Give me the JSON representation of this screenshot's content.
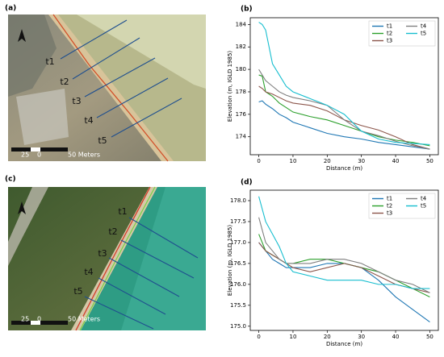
{
  "panels": {
    "a": {
      "label": "(a)",
      "transects": [
        "t1",
        "t2",
        "t3",
        "t4",
        "t5"
      ],
      "scale": [
        "25",
        "0",
        "50 Meters"
      ]
    },
    "c": {
      "label": "(c)",
      "transects": [
        "t1",
        "t2",
        "t3",
        "t4",
        "t5"
      ],
      "scale": [
        "25",
        "0",
        "50 Meters"
      ]
    }
  },
  "chart_data": [
    {
      "type": "line",
      "label": "(b)",
      "xlabel": "Distance (m)",
      "ylabel": "Elevation (m, IGLD 1985)",
      "x": [
        0,
        1,
        2,
        4,
        6,
        8,
        10,
        15,
        20,
        25,
        30,
        35,
        40,
        45,
        50
      ],
      "series": [
        {
          "name": "t1",
          "color": "#1f77b4",
          "values": [
            177.1,
            177.2,
            176.9,
            176.5,
            176.0,
            175.7,
            175.3,
            174.8,
            174.3,
            174.0,
            173.8,
            173.5,
            173.3,
            173.1,
            172.9
          ]
        },
        {
          "name": "t2",
          "color": "#2ca02c",
          "values": [
            179.5,
            179.4,
            178.0,
            177.6,
            177.0,
            176.6,
            176.2,
            175.8,
            175.5,
            175.0,
            174.5,
            174.0,
            173.7,
            173.5,
            173.2
          ]
        },
        {
          "name": "t3",
          "color": "#8c564b",
          "values": [
            178.5,
            178.3,
            178.0,
            177.8,
            177.5,
            177.2,
            177.0,
            176.8,
            176.3,
            175.5,
            175.0,
            174.6,
            174.0,
            173.3,
            172.9
          ]
        },
        {
          "name": "t4",
          "color": "#7f7f7f",
          "values": [
            180.0,
            179.5,
            179.0,
            178.5,
            178.0,
            177.7,
            177.5,
            177.2,
            176.8,
            175.5,
            174.5,
            174.1,
            173.6,
            173.2,
            172.9
          ]
        },
        {
          "name": "t5",
          "color": "#17becf",
          "values": [
            184.2,
            184.0,
            183.5,
            180.5,
            179.5,
            178.5,
            178.0,
            177.4,
            176.8,
            176.0,
            174.5,
            173.8,
            173.5,
            173.4,
            173.3
          ]
        }
      ],
      "xlim": [
        -2.5,
        52.5
      ],
      "xticks": [
        0,
        10,
        20,
        30,
        40,
        50
      ],
      "ylim": [
        172.4,
        184.6
      ],
      "yticks": [
        174,
        176,
        178,
        180,
        182,
        184
      ],
      "legend": "upper right"
    },
    {
      "type": "line",
      "label": "(d)",
      "xlabel": "Distance (m)",
      "ylabel": "Elevation (m, IGLD 1985)",
      "x": [
        0,
        1,
        2,
        4,
        6,
        8,
        10,
        15,
        20,
        25,
        30,
        35,
        40,
        45,
        50
      ],
      "series": [
        {
          "name": "t1",
          "color": "#1f77b4",
          "values": [
            177.0,
            176.9,
            176.8,
            176.6,
            176.5,
            176.4,
            176.4,
            176.4,
            176.5,
            176.5,
            176.4,
            176.1,
            175.7,
            175.4,
            175.1
          ]
        },
        {
          "name": "t2",
          "color": "#2ca02c",
          "values": [
            177.2,
            177.0,
            176.8,
            176.7,
            176.6,
            176.5,
            176.5,
            176.6,
            176.6,
            176.5,
            176.4,
            176.3,
            176.1,
            175.9,
            175.7
          ]
        },
        {
          "name": "t3",
          "color": "#8c564b",
          "values": [
            177.0,
            176.9,
            176.8,
            176.7,
            176.6,
            176.5,
            176.4,
            176.3,
            176.4,
            176.5,
            176.4,
            176.2,
            176.0,
            175.9,
            175.8
          ]
        },
        {
          "name": "t4",
          "color": "#7f7f7f",
          "values": [
            177.6,
            177.3,
            177.0,
            176.8,
            176.6,
            176.5,
            176.5,
            176.5,
            176.6,
            176.6,
            176.5,
            176.3,
            176.1,
            176.0,
            175.8
          ]
        },
        {
          "name": "t5",
          "color": "#17becf",
          "values": [
            178.1,
            177.8,
            177.5,
            177.2,
            176.9,
            176.5,
            176.3,
            176.2,
            176.1,
            176.1,
            176.1,
            176.0,
            176.0,
            175.9,
            175.9
          ]
        }
      ],
      "xlim": [
        -2.5,
        52.5
      ],
      "xticks": [
        0,
        10,
        20,
        30,
        40,
        50
      ],
      "ylim": [
        174.9,
        178.25
      ],
      "yticks": [
        {
          "value": 175,
          "label": "175.0"
        },
        {
          "value": 175.5,
          "label": "175.5"
        },
        {
          "value": 176,
          "label": "176.0"
        },
        {
          "value": 176.5,
          "label": "176.5"
        },
        {
          "value": 177,
          "label": "177.0"
        },
        {
          "value": 177.5,
          "label": "177.5"
        },
        {
          "value": 178,
          "label": "178.0"
        }
      ],
      "legend": "upper right"
    }
  ]
}
